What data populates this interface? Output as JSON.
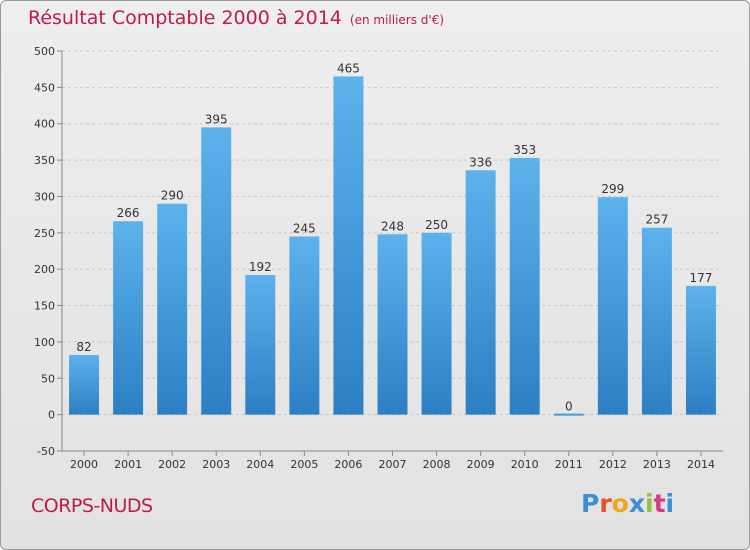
{
  "title": "Résultat Comptable 2000 à 2014",
  "unit_note": "(en milliers d'€)",
  "entity": "CORPS-NUDS",
  "logo": {
    "text": "Proxiti",
    "letter_colors": [
      "#3a8fd8",
      "#e8502a",
      "#f2a51d",
      "#3a8fd8",
      "#8cc63f",
      "#d63b7c",
      "#3a8fd8"
    ]
  },
  "colors": {
    "bar": "#3f9ae0",
    "bar_light": "#5fb3ec",
    "axis": "#999999",
    "title": "#c01c48"
  },
  "chart_data": {
    "type": "bar",
    "title": "Résultat Comptable 2000 à 2014",
    "xlabel": "",
    "ylabel": "",
    "categories": [
      "2000",
      "2001",
      "2002",
      "2003",
      "2004",
      "2005",
      "2006",
      "2007",
      "2008",
      "2009",
      "2010",
      "2011",
      "2012",
      "2013",
      "2014"
    ],
    "values": [
      82,
      266,
      290,
      395,
      192,
      245,
      465,
      248,
      250,
      336,
      353,
      0,
      299,
      257,
      177
    ],
    "ylim": [
      -50,
      500
    ],
    "yticks": [
      -50,
      0,
      50,
      100,
      150,
      200,
      250,
      300,
      350,
      400,
      450,
      500
    ],
    "grid": true
  }
}
